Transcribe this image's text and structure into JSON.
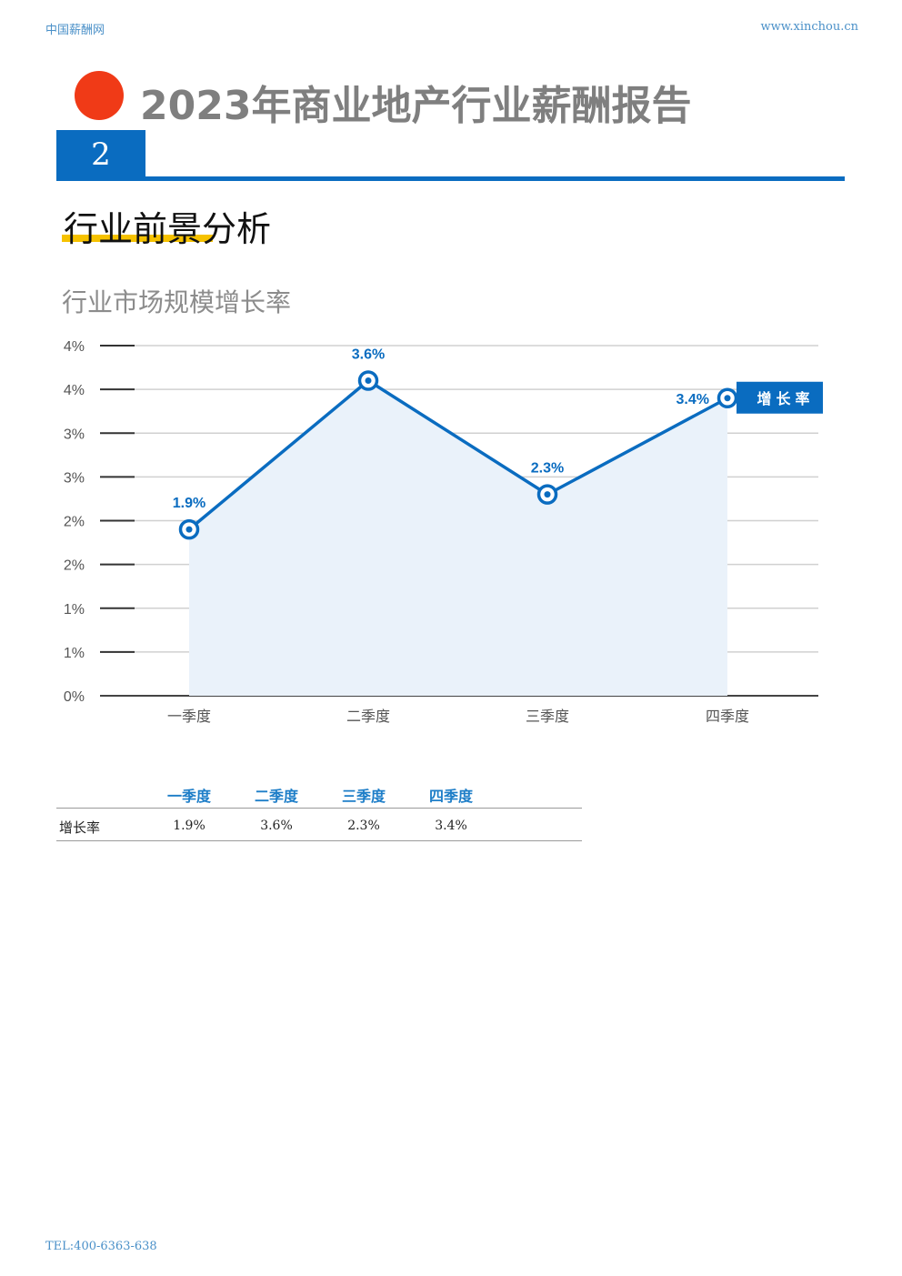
{
  "header": {
    "site_name": "中国薪酬网",
    "url": "www.xinchou.cn"
  },
  "report_title": "2023年商业地产行业薪酬报告",
  "section": {
    "number": "2",
    "title": "行业前景分析"
  },
  "chart_title": "行业市场规模增长率",
  "chart_data": {
    "type": "area",
    "title": "行业市场规模增长率",
    "categories": [
      "一季度",
      "二季度",
      "三季度",
      "四季度"
    ],
    "series": [
      {
        "name": "增长率",
        "values": [
          1.9,
          3.6,
          2.3,
          3.4
        ],
        "labels": [
          "1.9%",
          "3.6%",
          "2.3%",
          "3.4%"
        ]
      }
    ],
    "y_tick_labels": [
      "0%",
      "1%",
      "1%",
      "2%",
      "2%",
      "3%",
      "3%",
      "4%",
      "4%"
    ],
    "ylim": [
      0,
      4
    ],
    "grid": true,
    "legend_position": "right",
    "colors": {
      "line": "#0a6cc0",
      "fill": "#eaf2fa",
      "grid": "#d0d0d0"
    }
  },
  "table": {
    "headers": [
      "一季度",
      "二季度",
      "三季度",
      "四季度"
    ],
    "row": {
      "label": "增长率",
      "values": [
        "1.9%",
        "3.6%",
        "2.3%",
        "3.4%"
      ]
    }
  },
  "footer": {
    "tel": "TEL:400-6363-638"
  }
}
